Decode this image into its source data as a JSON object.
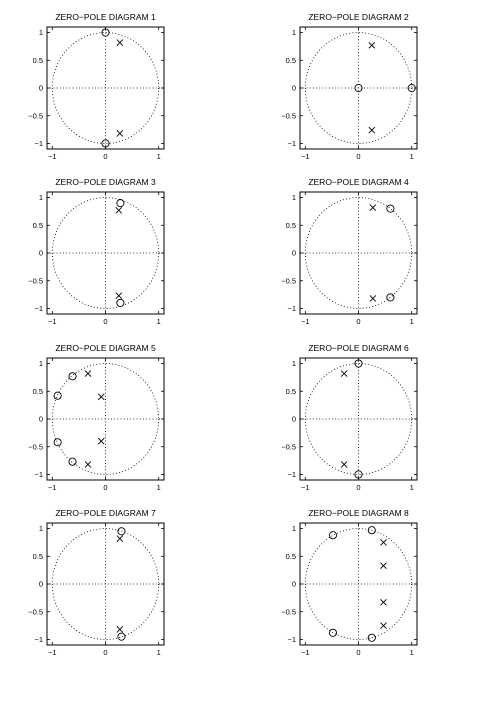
{
  "figure": {
    "layout": "4 rows x 2 columns of zero-pole diagrams",
    "marker_legend": {
      "zero": "circle",
      "pole": "x"
    },
    "unit_circle": "dotted",
    "axes_lines": "dotted"
  },
  "chart_data": [
    {
      "type": "scatter",
      "title": "ZERO−POLE DIAGRAM 1",
      "xlim": [
        -1.1,
        1.1
      ],
      "ylim": [
        -1.1,
        1.1
      ],
      "xticks": [
        -1,
        0,
        1
      ],
      "xtick_labels": [
        "−1",
        "0",
        "1"
      ],
      "yticks": [
        1,
        0.5,
        0,
        -0.5,
        -1
      ],
      "ytick_labels": [
        "1",
        "0.5",
        "0",
        "−0.5",
        "−1"
      ],
      "zeros": [
        {
          "x": 0,
          "y": 1
        },
        {
          "x": 0,
          "y": -1
        }
      ],
      "poles": [
        {
          "x": 0.27,
          "y": 0.82
        },
        {
          "x": 0.27,
          "y": -0.82
        }
      ]
    },
    {
      "type": "scatter",
      "title": "ZERO−POLE DIAGRAM 2",
      "xlim": [
        -1.1,
        1.1
      ],
      "ylim": [
        -1.1,
        1.1
      ],
      "xticks": [
        -1,
        0,
        1
      ],
      "xtick_labels": [
        "−1",
        "0",
        "1"
      ],
      "yticks": [
        1,
        0.5,
        0,
        -0.5,
        -1
      ],
      "ytick_labels": [
        "1",
        "0.5",
        "0",
        "−0.5",
        "−1"
      ],
      "zeros": [
        {
          "x": 0,
          "y": 0
        },
        {
          "x": 1,
          "y": 0
        }
      ],
      "poles": [
        {
          "x": 0.25,
          "y": 0.77
        },
        {
          "x": 0.25,
          "y": -0.76
        }
      ]
    },
    {
      "type": "scatter",
      "title": "ZERO−POLE DIAGRAM 3",
      "xlim": [
        -1.1,
        1.1
      ],
      "ylim": [
        -1.1,
        1.1
      ],
      "xticks": [
        -1,
        0,
        1
      ],
      "xtick_labels": [
        "−1",
        "0",
        "1"
      ],
      "yticks": [
        1,
        0.5,
        0,
        -0.5,
        -1
      ],
      "ytick_labels": [
        "1",
        "0.5",
        "0",
        "−0.5",
        "−1"
      ],
      "zeros": [
        {
          "x": 0.28,
          "y": 0.9
        },
        {
          "x": 0.28,
          "y": -0.9
        }
      ],
      "poles": [
        {
          "x": 0.25,
          "y": 0.77
        },
        {
          "x": 0.25,
          "y": -0.77
        }
      ]
    },
    {
      "type": "scatter",
      "title": "ZERO−POLE DIAGRAM 4",
      "xlim": [
        -1.1,
        1.1
      ],
      "ylim": [
        -1.1,
        1.1
      ],
      "xticks": [
        -1,
        0,
        1
      ],
      "xtick_labels": [
        "−1",
        "0",
        "1"
      ],
      "yticks": [
        1,
        0.5,
        0,
        -0.5,
        -1
      ],
      "ytick_labels": [
        "1",
        "0.5",
        "0",
        "−0.5",
        "−1"
      ],
      "zeros": [
        {
          "x": 0.6,
          "y": 0.8
        },
        {
          "x": 0.6,
          "y": -0.8
        }
      ],
      "poles": [
        {
          "x": 0.27,
          "y": 0.82
        },
        {
          "x": 0.27,
          "y": -0.82
        }
      ]
    },
    {
      "type": "scatter",
      "title": "ZERO−POLE DIAGRAM 5",
      "xlim": [
        -1.1,
        1.1
      ],
      "ylim": [
        -1.1,
        1.1
      ],
      "xticks": [
        -1,
        0,
        1
      ],
      "xtick_labels": [
        "−1",
        "0",
        "1"
      ],
      "yticks": [
        1,
        0.5,
        0,
        -0.5,
        -1
      ],
      "ytick_labels": [
        "1",
        "0.5",
        "0",
        "−0.5",
        "−1"
      ],
      "zeros": [
        {
          "x": -0.62,
          "y": 0.77
        },
        {
          "x": -0.9,
          "y": 0.42
        },
        {
          "x": -0.9,
          "y": -0.42
        },
        {
          "x": -0.62,
          "y": -0.77
        }
      ],
      "poles": [
        {
          "x": -0.33,
          "y": 0.82
        },
        {
          "x": -0.08,
          "y": 0.4
        },
        {
          "x": -0.08,
          "y": -0.4
        },
        {
          "x": -0.33,
          "y": -0.82
        }
      ]
    },
    {
      "type": "scatter",
      "title": "ZERO−POLE DIAGRAM 6",
      "xlim": [
        -1.1,
        1.1
      ],
      "ylim": [
        -1.1,
        1.1
      ],
      "xticks": [
        -1,
        0,
        1
      ],
      "xtick_labels": [
        "−1",
        "0",
        "1"
      ],
      "yticks": [
        1,
        0.5,
        0,
        -0.5,
        -1
      ],
      "ytick_labels": [
        "1",
        "0.5",
        "0",
        "−0.5",
        "−1"
      ],
      "zeros": [
        {
          "x": 0,
          "y": 1
        },
        {
          "x": 0,
          "y": -1
        }
      ],
      "poles": [
        {
          "x": -0.27,
          "y": 0.82
        },
        {
          "x": -0.27,
          "y": -0.82
        }
      ]
    },
    {
      "type": "scatter",
      "title": "ZERO−POLE DIAGRAM 7",
      "xlim": [
        -1.1,
        1.1
      ],
      "ylim": [
        -1.1,
        1.1
      ],
      "xticks": [
        -1,
        0,
        1
      ],
      "xtick_labels": [
        "−1",
        "0",
        "1"
      ],
      "yticks": [
        1,
        0.5,
        0,
        -0.5,
        -1
      ],
      "ytick_labels": [
        "1",
        "0.5",
        "0",
        "−0.5",
        "−1"
      ],
      "zeros": [
        {
          "x": 0.3,
          "y": 0.95
        },
        {
          "x": 0.3,
          "y": -0.95
        }
      ],
      "poles": [
        {
          "x": 0.27,
          "y": 0.82
        },
        {
          "x": 0.27,
          "y": -0.82
        }
      ]
    },
    {
      "type": "scatter",
      "title": "ZERO−POLE DIAGRAM 8",
      "xlim": [
        -1.1,
        1.1
      ],
      "ylim": [
        -1.1,
        1.1
      ],
      "xticks": [
        -1,
        0,
        1
      ],
      "xtick_labels": [
        "−1",
        "0",
        "1"
      ],
      "yticks": [
        1,
        0.5,
        0,
        -0.5,
        -1
      ],
      "ytick_labels": [
        "1",
        "0.5",
        "0",
        "−0.5",
        "−1"
      ],
      "zeros": [
        {
          "x": -0.48,
          "y": 0.88
        },
        {
          "x": 0.25,
          "y": 0.97
        },
        {
          "x": -0.48,
          "y": -0.88
        },
        {
          "x": 0.25,
          "y": -0.97
        }
      ],
      "poles": [
        {
          "x": 0.47,
          "y": 0.75
        },
        {
          "x": 0.47,
          "y": 0.33
        },
        {
          "x": 0.47,
          "y": -0.33
        },
        {
          "x": 0.47,
          "y": -0.75
        }
      ]
    }
  ]
}
